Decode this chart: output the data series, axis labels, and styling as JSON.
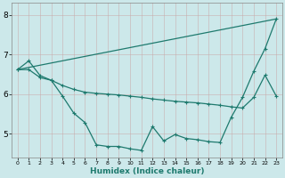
{
  "background_color": "#cce8ea",
  "grid_color": "#b8d8da",
  "line_color": "#1e7a6e",
  "xlabel": "Humidex (Indice chaleur)",
  "xlim": [
    -0.5,
    23.5
  ],
  "ylim": [
    4.4,
    8.3
  ],
  "yticks": [
    5,
    6,
    7,
    8
  ],
  "xticks": [
    0,
    1,
    2,
    3,
    4,
    5,
    6,
    7,
    8,
    9,
    10,
    11,
    12,
    13,
    14,
    15,
    16,
    17,
    18,
    19,
    20,
    21,
    22,
    23
  ],
  "line1_x": [
    0,
    23
  ],
  "line1_y": [
    6.62,
    7.9
  ],
  "line2_x": [
    0,
    1,
    2,
    3,
    4,
    5,
    6,
    7,
    8,
    9,
    10,
    11,
    12,
    13,
    14,
    15,
    16,
    17,
    18,
    19,
    20,
    21,
    22,
    23
  ],
  "line2_y": [
    6.62,
    6.84,
    6.47,
    6.35,
    5.95,
    5.52,
    5.28,
    4.72,
    4.68,
    4.68,
    4.62,
    4.58,
    5.18,
    4.82,
    4.98,
    4.88,
    4.85,
    4.8,
    4.78,
    5.42,
    5.92,
    6.58,
    7.15,
    7.9
  ],
  "line3_x": [
    0,
    1,
    2,
    3,
    4,
    5,
    6,
    7,
    8,
    9,
    10,
    11,
    12,
    13,
    14,
    15,
    16,
    17,
    18,
    19,
    20,
    21,
    22,
    23
  ],
  "line3_y": [
    6.62,
    6.62,
    6.42,
    6.35,
    6.22,
    6.12,
    6.05,
    6.02,
    6.0,
    5.98,
    5.95,
    5.92,
    5.88,
    5.85,
    5.82,
    5.8,
    5.78,
    5.75,
    5.72,
    5.68,
    5.65,
    5.92,
    6.48,
    5.95
  ]
}
